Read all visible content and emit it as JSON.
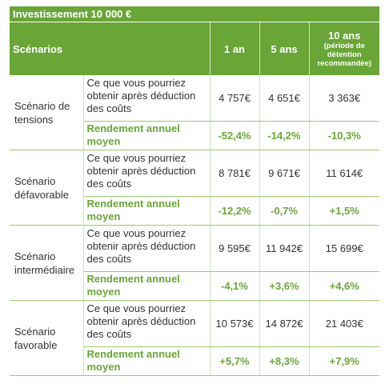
{
  "title": "Investissement 10 000 €",
  "header": {
    "scenarios": "Scénarios",
    "col1": "1 an",
    "col2": "5 ans",
    "col3_main": "10 ans",
    "col3_sub": "(période de détention recommandée)"
  },
  "rows": [
    {
      "name": "Scénario de tensions",
      "cost_label": "Ce que vous pourriez obtenir après déduction des coûts",
      "values": [
        "4 757€",
        "4 651€",
        "3 363€"
      ],
      "yield_label": "Rendement annuel moyen",
      "yields": [
        "-52,4%",
        "-14,2%",
        "-10,3%"
      ]
    },
    {
      "name": "Scénario défavorable",
      "cost_label": "Ce que vous pourriez obtenir après déduction des coûts",
      "values": [
        "8 781€",
        "9 671€",
        "11 614€"
      ],
      "yield_label": "Rendement annuel moyen",
      "yields": [
        "-12,2%",
        "-0,7%",
        "+1,5%"
      ]
    },
    {
      "name": "Scénario intermédiaire",
      "cost_label": "Ce que vous pourriez obtenir après déduction des coûts",
      "values": [
        "9 595€",
        "11 942€",
        "15 699€"
      ],
      "yield_label": "Rendement annuel moyen",
      "yields": [
        "-4,1%",
        "+3,6%",
        "+4,6%"
      ]
    },
    {
      "name": "Scénario favorable",
      "cost_label": "Ce que vous pourriez obtenir après déduction des coûts",
      "values": [
        "10 573€",
        "14 872€",
        "21 403€"
      ],
      "yield_label": "Rendement annuel moyen",
      "yields": [
        "+5,7%",
        "+8,3%",
        "+7,9%"
      ]
    }
  ]
}
